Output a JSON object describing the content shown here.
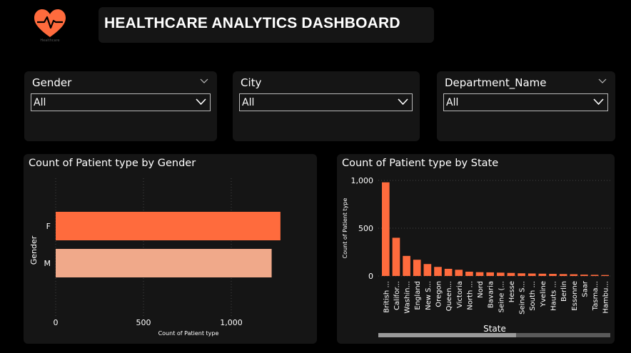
{
  "header": {
    "title": "HEALTHCARE ANALYTICS DASHBOARD",
    "logo_icon": "heart-pulse-icon",
    "logo_text": "Healthcare"
  },
  "colors": {
    "accent": "#FF6B3D",
    "secondary": "#F0A98A",
    "panel": "#151515"
  },
  "slicers": [
    {
      "label": "Gender",
      "value": "All"
    },
    {
      "label": "City",
      "value": "All"
    },
    {
      "label": "Department_Name",
      "value": "All"
    }
  ],
  "gender_chart": {
    "title": "Count of Patient type by Gender",
    "xlabel": "Count of Patient type",
    "ylabel": "Gender",
    "ticks": [
      "0",
      "500",
      "1,000"
    ]
  },
  "state_chart": {
    "title": "Count of Patient type by State",
    "xlabel": "State",
    "ylabel": "Count of Patient type",
    "ticks": [
      "0",
      "500",
      "1,000"
    ]
  },
  "chart_data": [
    {
      "type": "bar",
      "orientation": "horizontal",
      "title": "Count of Patient type by Gender",
      "xlabel": "Count of Patient type",
      "ylabel": "Gender",
      "categories": [
        "F",
        "M"
      ],
      "values": [
        1280,
        1230
      ],
      "xlim": [
        0,
        1300
      ],
      "grid": true,
      "colors": [
        "#FF6B3D",
        "#F0A98A"
      ]
    },
    {
      "type": "bar",
      "title": "Count of Patient type by State",
      "xlabel": "State",
      "ylabel": "Count of Patient type",
      "categories": [
        "British ...",
        "Califor...",
        "Washin...",
        "England",
        "New S...",
        "Oregon",
        "Queen...",
        "Victoria",
        "North ...",
        "Nord",
        "Bavaria",
        "Seine (...",
        "Hesse",
        "Seine S...",
        "South ...",
        "Yveline",
        "Hauts ...",
        "Berlin",
        "Essonne",
        "Saar",
        "Tasma...",
        "Hambu..."
      ],
      "values": [
        980,
        400,
        210,
        170,
        125,
        95,
        75,
        65,
        45,
        40,
        38,
        35,
        32,
        28,
        26,
        24,
        22,
        20,
        18,
        14,
        12,
        10
      ],
      "ylim": [
        0,
        1000
      ],
      "grid": true,
      "color": "#FF6B3D"
    }
  ]
}
